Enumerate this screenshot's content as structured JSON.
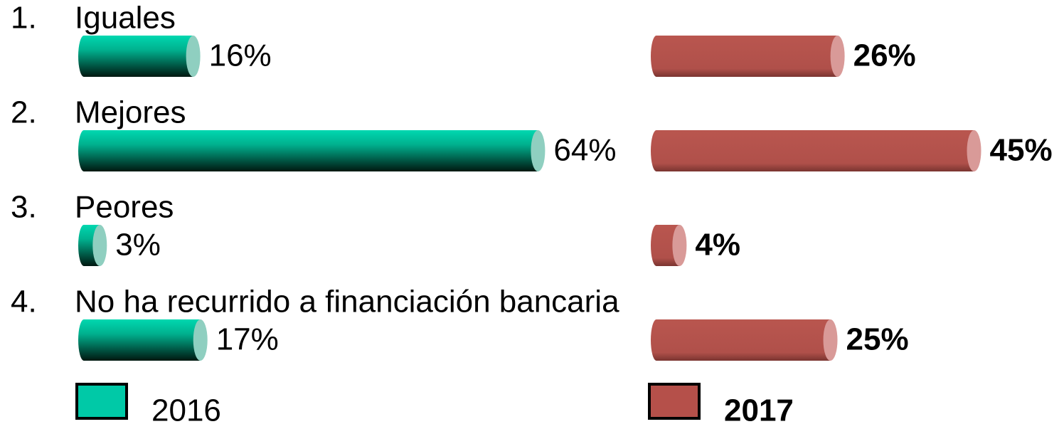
{
  "chart_data": {
    "type": "bar",
    "category_numbers": [
      "1.",
      "2.",
      "3.",
      "4."
    ],
    "categories": [
      "Iguales",
      "Mejores",
      "Peores",
      "No ha recurrido a financiación bancaria"
    ],
    "series": [
      {
        "name": "2016",
        "color": "#00c9a7",
        "label_weight": "normal",
        "values": [
          16,
          64,
          3,
          17
        ],
        "value_labels": [
          "16%",
          "64%",
          "3%",
          "17%"
        ]
      },
      {
        "name": "2017",
        "color": "#b5504a",
        "label_weight": "bold",
        "values": [
          26,
          45,
          4,
          25
        ],
        "value_labels": [
          "26%",
          "45%",
          "4%",
          "25%"
        ]
      }
    ]
  }
}
